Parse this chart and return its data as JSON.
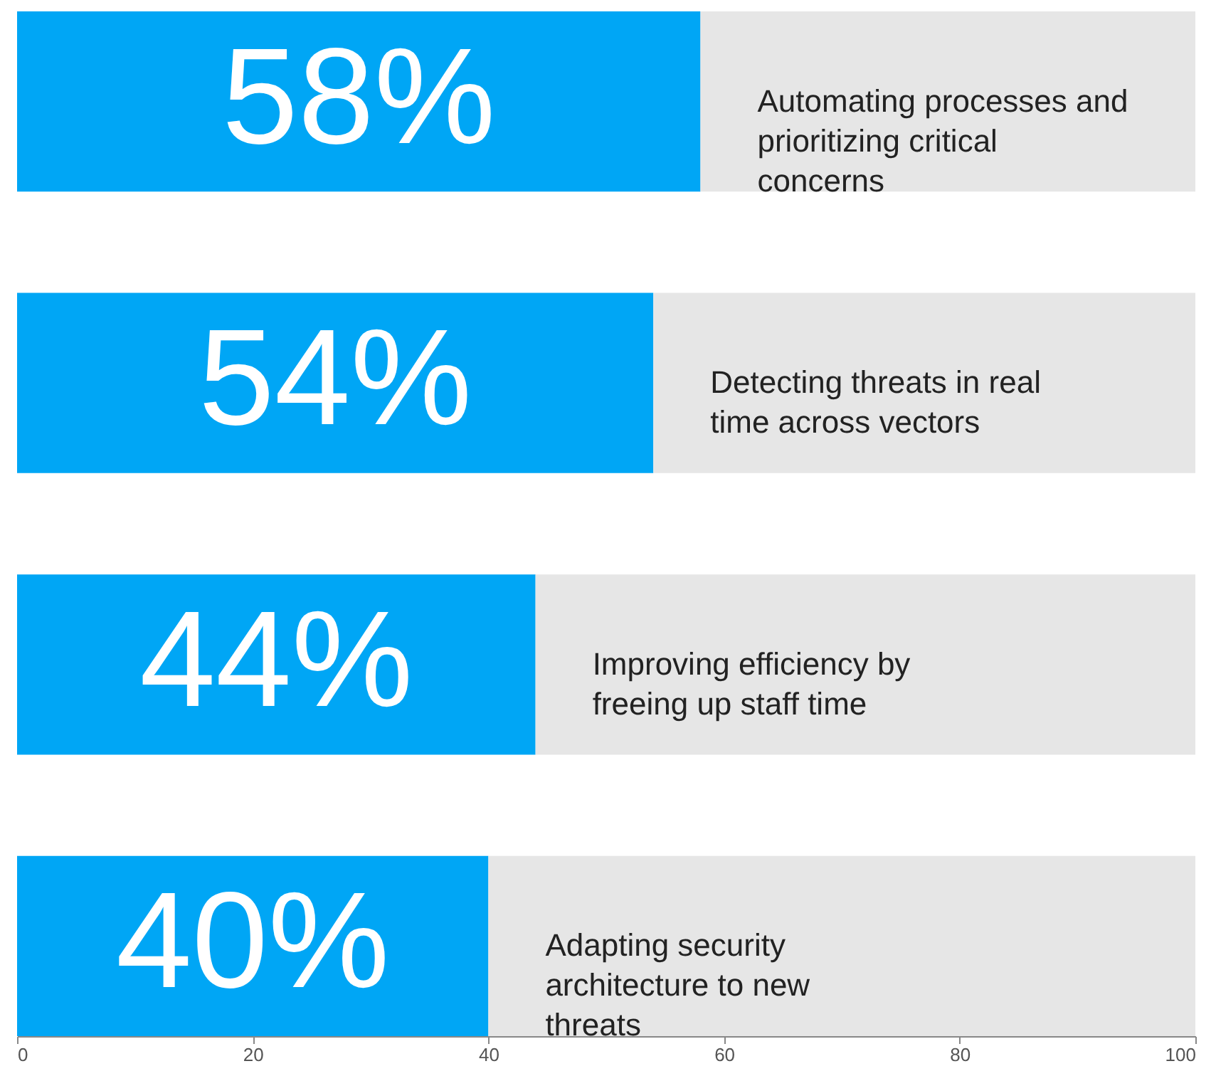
{
  "chart_data": {
    "type": "bar",
    "orientation": "horizontal",
    "stacked": true,
    "categories": [
      "Automating processes and prioritizing critical concerns",
      "Detecting threats in real time across vectors",
      "Improving efficiency by freeing up staff time",
      "Adapting security architecture to new threats"
    ],
    "series": [
      {
        "color": "#00a6f5",
        "values": [
          58,
          54,
          44,
          40
        ],
        "value_labels": [
          "58%",
          "54%",
          "44%",
          "40%"
        ]
      },
      {
        "color": "#e6e6e6",
        "values": [
          42,
          46,
          56,
          60
        ]
      }
    ],
    "xlim": [
      0,
      100
    ],
    "xticks": [
      0,
      20,
      40,
      60,
      80,
      100
    ],
    "grid": false,
    "legend": false
  }
}
